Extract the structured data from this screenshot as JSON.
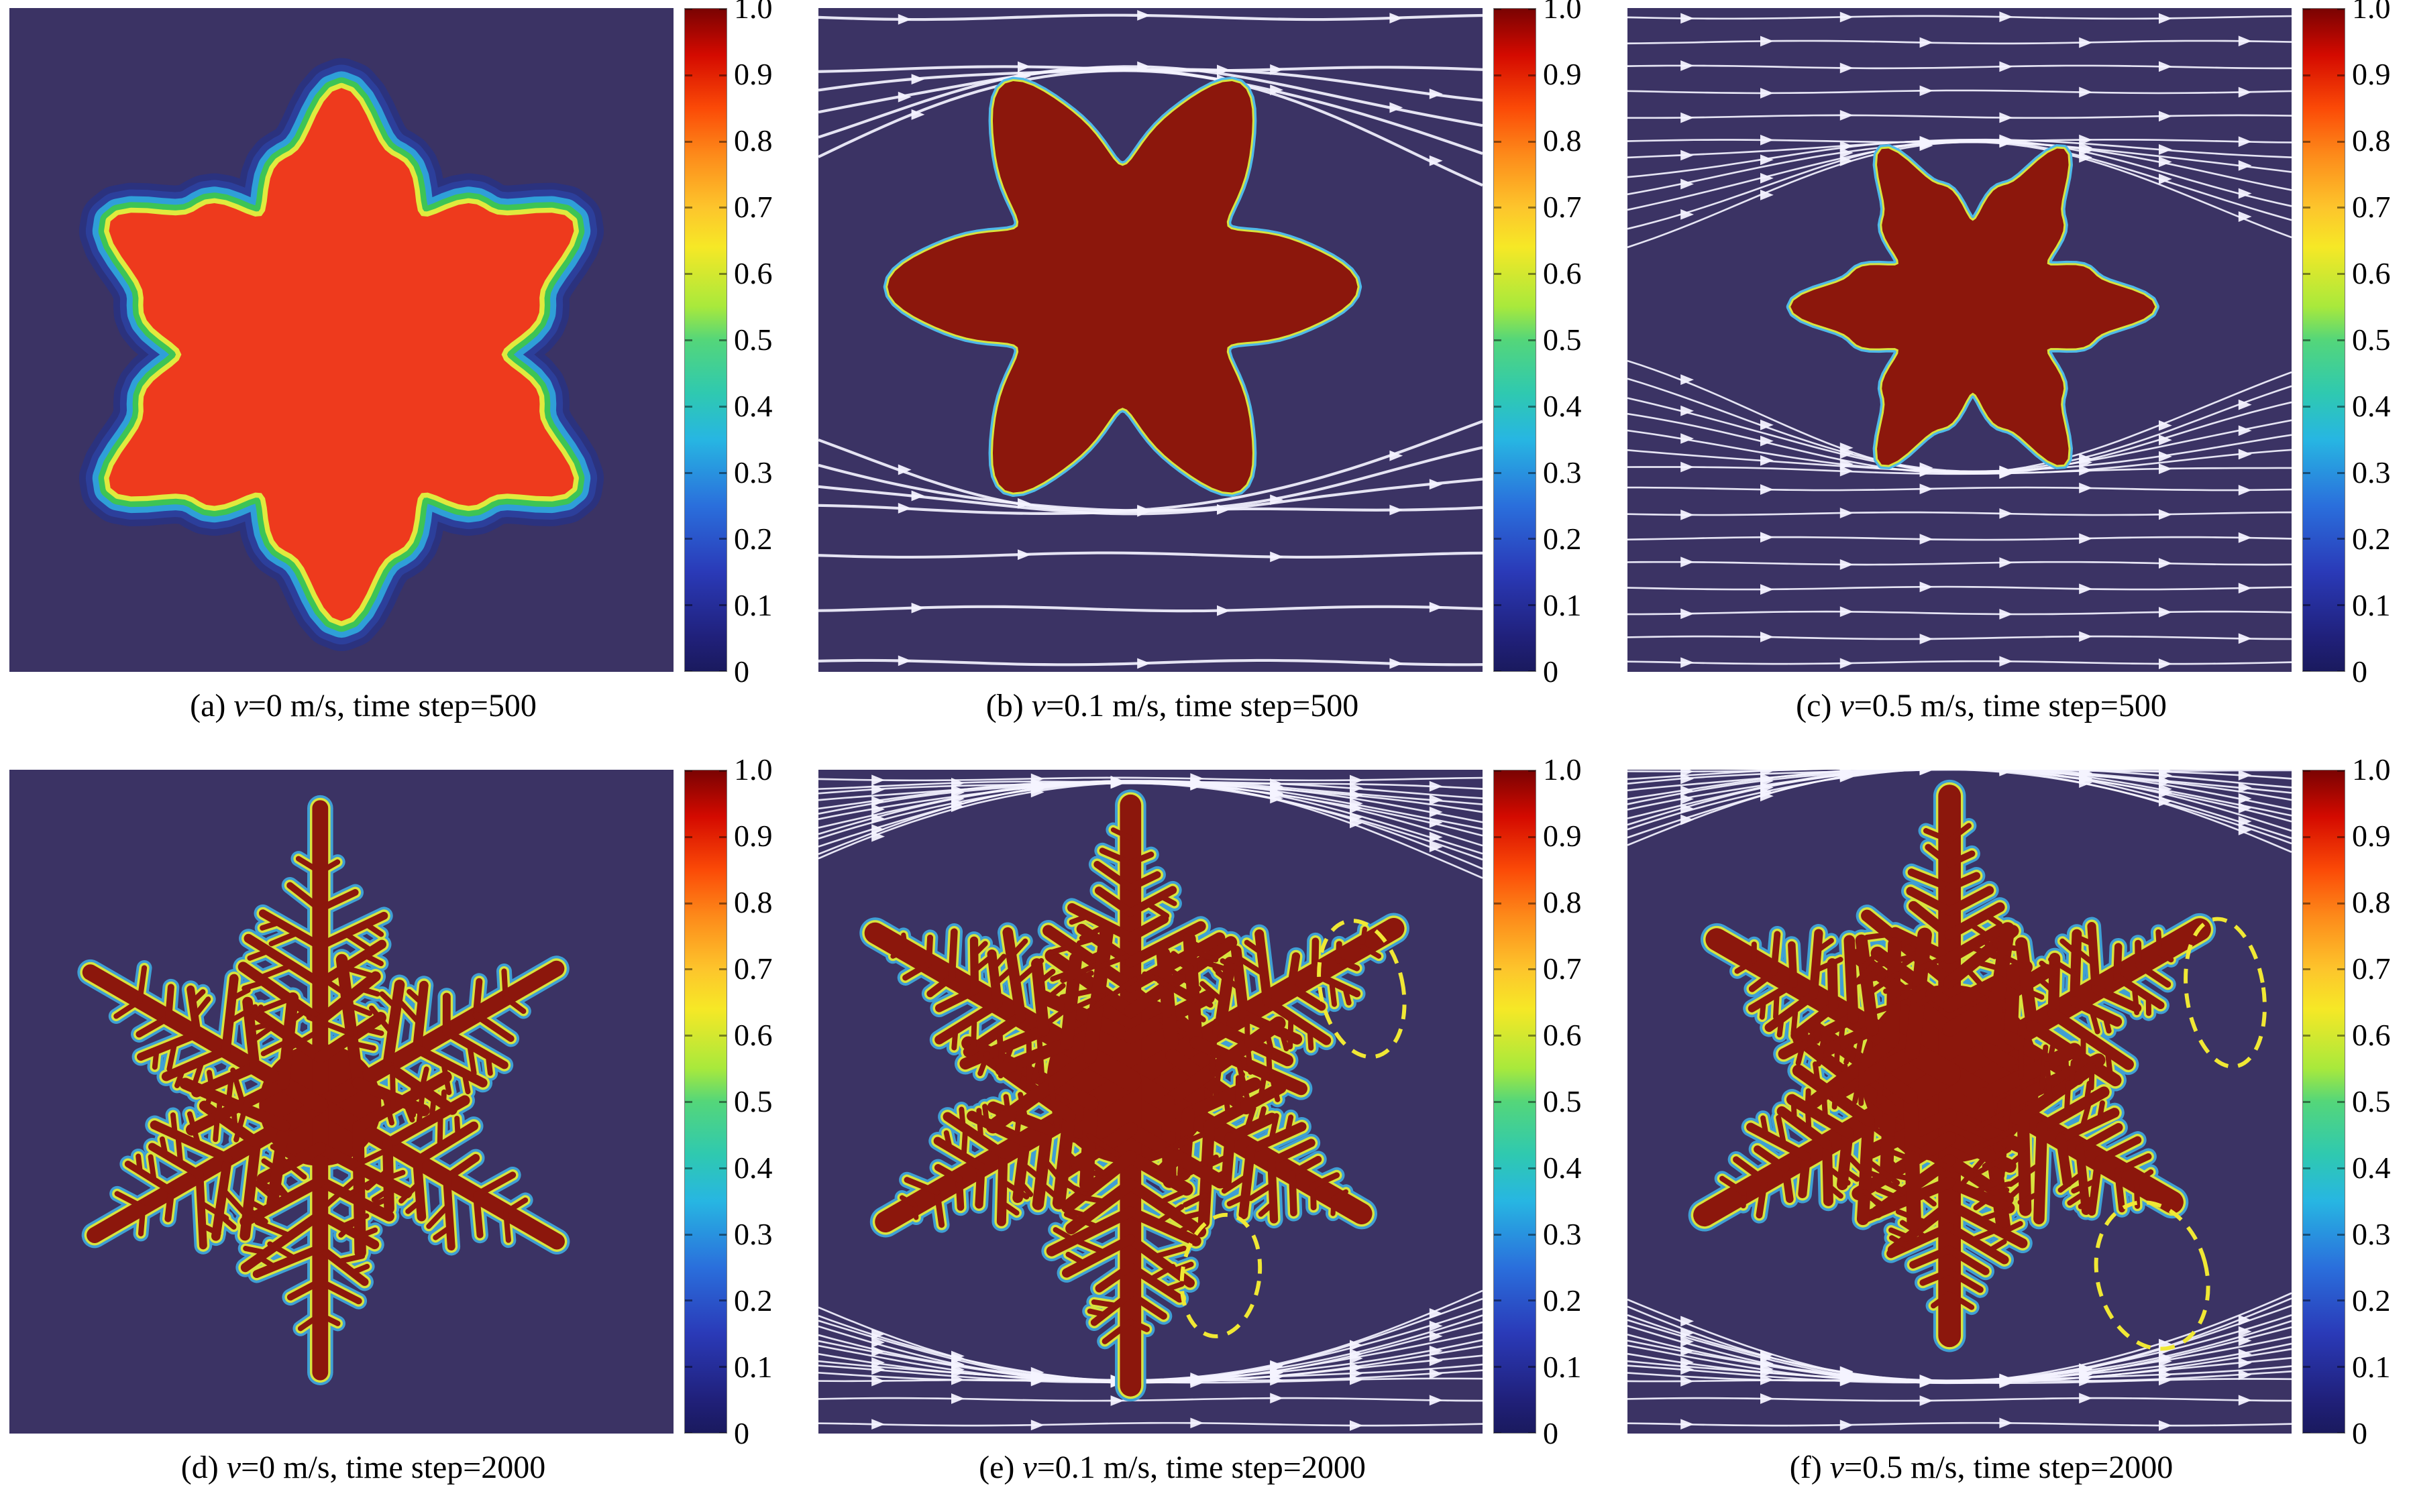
{
  "figure": {
    "colorbar_ticks": [
      "1.0",
      "0.9",
      "0.8",
      "0.7",
      "0.6",
      "0.5",
      "0.4",
      "0.3",
      "0.2",
      "0.1",
      "0"
    ],
    "colorbar_range": [
      0,
      1
    ],
    "colors": {
      "background": "#3b3364",
      "phase_red": "#ee3a1d",
      "crystal_red": "#8c170c",
      "rim_yellow": "#d8e43e",
      "rim_blue": "#2c3f9b",
      "rim_cyan": "#3f9fd4",
      "streamline": "#f4f3ff",
      "annotation_yellow": "#f0e834"
    },
    "panels": [
      {
        "key": "a",
        "label": "(a) ",
        "variable": "v",
        "rest": "=0 m/s, time step=500",
        "velocity": "0 m/s",
        "time_step": "500",
        "flow_field": false,
        "highlighted_regions": 0
      },
      {
        "key": "b",
        "label": "(b) ",
        "variable": "v",
        "rest": "=0.1 m/s, time step=500",
        "velocity": "0.1 m/s",
        "time_step": "500",
        "flow_field": true,
        "highlighted_regions": 0
      },
      {
        "key": "c",
        "label": "(c) ",
        "variable": "v",
        "rest": "=0.5 m/s, time step=500",
        "velocity": "0.5 m/s",
        "time_step": "500",
        "flow_field": true,
        "highlighted_regions": 0
      },
      {
        "key": "d",
        "label": "(d) ",
        "variable": "v",
        "rest": "=0 m/s, time step=2000",
        "velocity": "0 m/s",
        "time_step": "2000",
        "flow_field": false,
        "highlighted_regions": 0
      },
      {
        "key": "e",
        "label": "(e) ",
        "variable": "v",
        "rest": "=0.1 m/s, time step=2000",
        "velocity": "0.1 m/s",
        "time_step": "2000",
        "flow_field": true,
        "highlighted_regions": 2
      },
      {
        "key": "f",
        "label": "(f) ",
        "variable": "v",
        "rest": "=0.5 m/s, time step=2000",
        "velocity": "0.5 m/s",
        "time_step": "2000",
        "flow_field": true,
        "highlighted_regions": 2
      }
    ]
  }
}
